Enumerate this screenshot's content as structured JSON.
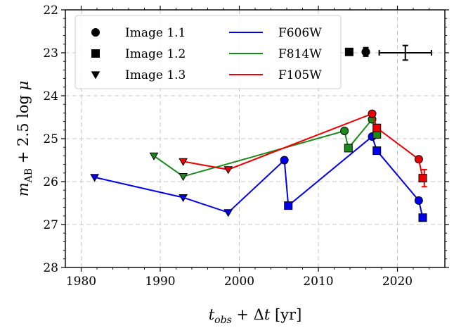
{
  "chart_data": {
    "type": "scatter",
    "title": "",
    "xlabel": "t_obs + Δt [yr]",
    "ylabel": "m_AB + 2.5 log μ",
    "xlim": [
      1978,
      2026
    ],
    "ylim": [
      28,
      22
    ],
    "y_inverted": true,
    "grid": true,
    "legend_position": "top-left",
    "xticks": [
      1980,
      1990,
      2000,
      2010,
      2020
    ],
    "yticks": [
      22,
      23,
      24,
      25,
      26,
      27,
      28
    ],
    "markers": [
      {
        "name": "Image 1.1",
        "symbol": "circle"
      },
      {
        "name": "Image 1.2",
        "symbol": "square"
      },
      {
        "name": "Image 1.3",
        "symbol": "triangle-down"
      }
    ],
    "series": [
      {
        "name": "F606W",
        "color": "#0000ee",
        "points": [
          {
            "x": 1981.7,
            "y": 25.9,
            "marker": "triangle-down"
          },
          {
            "x": 1992.9,
            "y": 26.37,
            "marker": "triangle-down"
          },
          {
            "x": 1998.6,
            "y": 26.72,
            "marker": "triangle-down"
          },
          {
            "x": 2005.7,
            "y": 25.5,
            "marker": "circle"
          },
          {
            "x": 2006.2,
            "y": 26.56,
            "marker": "square"
          },
          {
            "x": 2016.8,
            "y": 24.95,
            "marker": "circle"
          },
          {
            "x": 2017.4,
            "y": 25.28,
            "marker": "square"
          },
          {
            "x": 2022.7,
            "y": 26.44,
            "marker": "circle"
          },
          {
            "x": 2023.2,
            "y": 26.84,
            "marker": "square"
          }
        ]
      },
      {
        "name": "F814W",
        "color": "#1a8a1a",
        "points": [
          {
            "x": 1989.2,
            "y": 25.4,
            "marker": "triangle-down"
          },
          {
            "x": 1992.9,
            "y": 25.88,
            "marker": "triangle-down"
          },
          {
            "x": 2013.3,
            "y": 24.82,
            "marker": "circle"
          },
          {
            "x": 2013.8,
            "y": 25.22,
            "marker": "square"
          },
          {
            "x": 2016.8,
            "y": 24.55,
            "marker": "circle"
          },
          {
            "x": 2017.4,
            "y": 24.9,
            "marker": "square"
          }
        ]
      },
      {
        "name": "F105W",
        "color": "#ee0000",
        "points": [
          {
            "x": 1992.9,
            "y": 25.53,
            "marker": "triangle-down"
          },
          {
            "x": 1998.6,
            "y": 25.72,
            "marker": "triangle-down"
          },
          {
            "x": 2016.8,
            "y": 24.42,
            "marker": "circle"
          },
          {
            "x": 2017.4,
            "y": 24.75,
            "marker": "square"
          },
          {
            "x": 2022.7,
            "y": 25.48,
            "marker": "circle"
          },
          {
            "x": 2023.2,
            "y": 25.92,
            "marker": "square"
          }
        ],
        "errorbar": {
          "x": 2023.4,
          "y": 25.92,
          "yerr": 0.2
        }
      }
    ],
    "error_bars_top": [
      {
        "x": 2013.9,
        "y": 22.98,
        "xerr": 0,
        "yerr": 0.07,
        "marker": "square"
      },
      {
        "x": 2016.0,
        "y": 22.98,
        "xerr": 0,
        "yerr": 0.1,
        "marker": "circle"
      },
      {
        "x": 2021.0,
        "y": 23.0,
        "xerr": 3.3,
        "yerr": 0.17,
        "marker": "none"
      }
    ]
  }
}
